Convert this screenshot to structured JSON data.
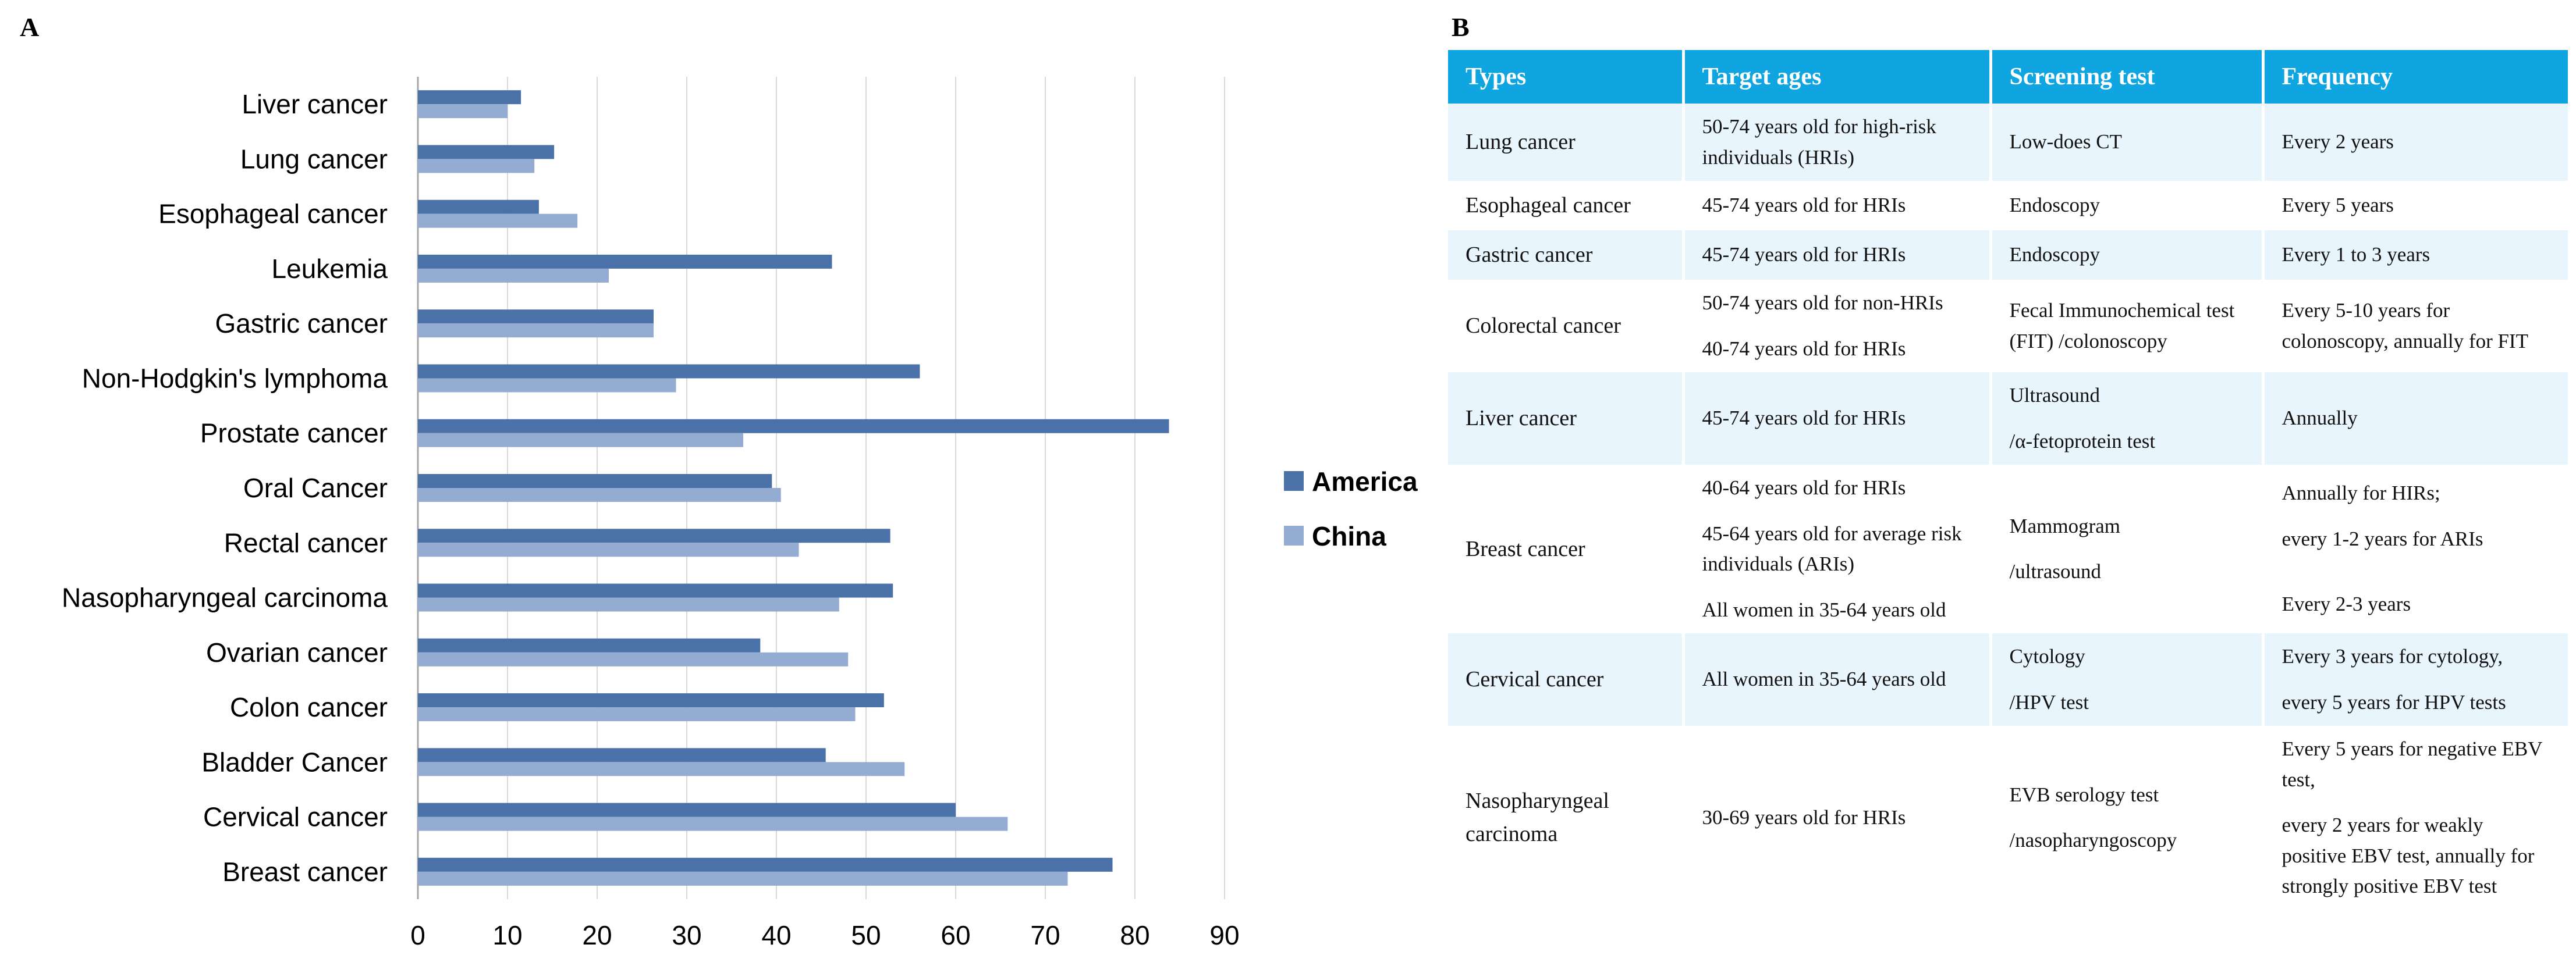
{
  "panel_labels": {
    "a": "A",
    "b": "B"
  },
  "chart_data": {
    "type": "bar",
    "orientation": "horizontal",
    "title": "",
    "xlabel": "",
    "ylabel": "",
    "categories": [
      "Liver cancer",
      "Lung cancer",
      "Esophageal cancer",
      "Leukemia",
      "Gastric cancer",
      "Non-Hodgkin's lymphoma",
      "Prostate cancer",
      "Oral Cancer",
      "Rectal cancer",
      "Nasopharyngeal carcinoma",
      "Ovarian cancer",
      "Colon cancer",
      "Bladder Cancer",
      "Cervical cancer",
      "Breast cancer"
    ],
    "series": [
      {
        "name": "America",
        "color": "#4a72a8",
        "values": [
          11.5,
          15.2,
          13.5,
          46.2,
          26.3,
          56.0,
          83.8,
          39.5,
          52.7,
          53.0,
          38.2,
          52.0,
          45.5,
          60.0,
          77.5
        ]
      },
      {
        "name": "China",
        "color": "#94acd2",
        "values": [
          10.0,
          13.0,
          17.8,
          21.3,
          26.3,
          28.8,
          36.3,
          40.5,
          42.5,
          47.0,
          48.0,
          48.8,
          54.3,
          65.8,
          72.5
        ]
      }
    ],
    "xlim": [
      0,
      90
    ],
    "ticks": [
      "0",
      "10",
      "20",
      "30",
      "40",
      "50",
      "60",
      "70",
      "80",
      "90"
    ],
    "grid": true,
    "legend_position": "right"
  },
  "table": {
    "headers": [
      "Types",
      "Target ages",
      "Screening test",
      "Frequency"
    ],
    "rows": [
      {
        "shade": true,
        "cells": [
          [
            "Lung cancer"
          ],
          [
            "50-74 years old for high-risk individuals (HRIs)"
          ],
          [
            "Low-does CT"
          ],
          [
            "Every 2 years"
          ]
        ]
      },
      {
        "shade": false,
        "cells": [
          [
            "Esophageal cancer"
          ],
          [
            "45-74 years old for HRIs"
          ],
          [
            "Endoscopy"
          ],
          [
            "Every 5 years"
          ]
        ]
      },
      {
        "shade": true,
        "cells": [
          [
            "Gastric cancer"
          ],
          [
            "45-74 years old for HRIs"
          ],
          [
            "Endoscopy"
          ],
          [
            "Every 1 to 3 years"
          ]
        ]
      },
      {
        "shade": false,
        "cells": [
          [
            "Colorectal cancer"
          ],
          [
            "50-74 years old for non-HRIs",
            "40-74 years old for HRIs"
          ],
          [
            "Fecal Immunochemical test (FIT) /colonoscopy"
          ],
          [
            "Every 5-10 years for colonoscopy, annually for FIT"
          ]
        ]
      },
      {
        "shade": true,
        "cells": [
          [
            "Liver cancer"
          ],
          [
            "45-74 years old for HRIs"
          ],
          [
            "Ultrasound",
            "/α-fetoprotein test"
          ],
          [
            "Annually"
          ]
        ]
      },
      {
        "shade": false,
        "cells": [
          [
            "Breast cancer"
          ],
          [
            "40-64 years old for HRIs",
            "45-64 years old for average risk individuals (ARIs)",
            "All women in 35-64 years old"
          ],
          [
            "Mammogram",
            "/ultrasound"
          ],
          [
            "Annually for HIRs;",
            "every 1-2 years for ARIs",
            "",
            "Every 2-3 years"
          ]
        ]
      },
      {
        "shade": true,
        "cells": [
          [
            "Cervical cancer"
          ],
          [
            "All women in 35-64 years old"
          ],
          [
            "Cytology",
            "/HPV test"
          ],
          [
            "Every 3 years for cytology,",
            "every 5 years for HPV tests"
          ]
        ]
      },
      {
        "shade": false,
        "cells": [
          [
            "Nasopharyngeal carcinoma"
          ],
          [
            "30-69 years old for HRIs"
          ],
          [
            "EVB serology test",
            "/nasopharyngoscopy"
          ],
          [
            "Every 5 years for negative EBV test,",
            "every 2 years for weakly positive EBV test, annually for strongly positive EBV test"
          ]
        ]
      }
    ]
  }
}
